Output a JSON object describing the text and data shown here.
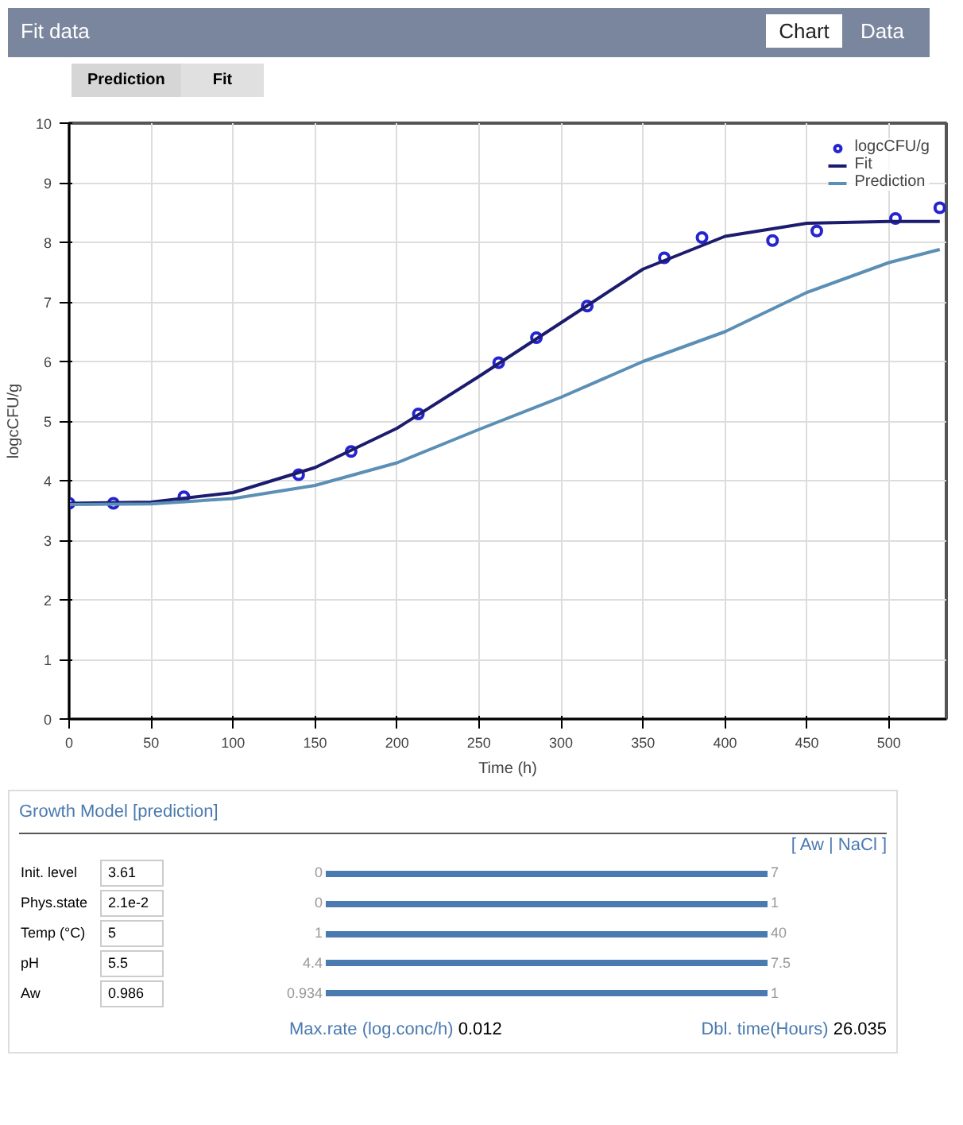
{
  "chart_data": {
    "type": "line",
    "title": "Fit data",
    "xlabel": "Time (h)",
    "ylabel": "logcCFU/g",
    "xlim": [
      0,
      535
    ],
    "xticks": [
      0,
      50,
      100,
      150,
      200,
      250,
      300,
      350,
      400,
      450,
      500
    ],
    "ylim": [
      0,
      10
    ],
    "yticks": [
      0,
      1,
      2,
      3,
      4,
      5,
      6,
      7,
      8,
      9,
      10
    ],
    "grid": true,
    "legend": "top right",
    "series": [
      {
        "name": "logcCFU/g",
        "type": "scatter",
        "marker": "circle",
        "color": "#2424d0",
        "x": [
          0,
          27,
          70,
          140,
          172,
          213,
          262,
          285,
          316,
          363,
          386,
          429,
          456,
          504,
          531
        ],
        "values": [
          3.62,
          3.62,
          3.73,
          4.1,
          4.49,
          5.12,
          5.98,
          6.4,
          6.93,
          7.74,
          8.08,
          8.03,
          8.19,
          8.4,
          8.58
        ]
      },
      {
        "name": "Fit",
        "color": "#1c1c6e",
        "x": [
          0,
          50,
          100,
          150,
          200,
          250,
          300,
          350,
          400,
          450,
          500,
          531
        ],
        "values": [
          3.62,
          3.64,
          3.8,
          4.22,
          4.88,
          5.75,
          6.65,
          7.55,
          8.1,
          8.32,
          8.35,
          8.35
        ]
      },
      {
        "name": "Prediction",
        "type": "line",
        "color": "#5b8fb5",
        "x": [
          0,
          50,
          100,
          150,
          200,
          250,
          300,
          350,
          400,
          450,
          500,
          531
        ],
        "values": [
          3.6,
          3.61,
          3.7,
          3.92,
          4.3,
          4.86,
          5.4,
          6.0,
          6.5,
          7.16,
          7.66,
          7.88
        ]
      }
    ],
    "annotations": [
      "Chart",
      "Data",
      "Prediction",
      "Fit",
      "Growth Model [prediction]",
      "[ Aw | NaCl ]",
      "Init. level",
      "3.61",
      "0",
      "7",
      "Phys.state",
      "2.1e-2",
      "0",
      "1",
      "Temp (°C)",
      "5",
      "1",
      "40",
      "pH",
      "5.5",
      "4.4",
      "7.5",
      "Aw",
      "0.986",
      "0.934",
      "1",
      "Max.rate (log.conc/h)",
      "0.012",
      "Dbl. time(Hours)",
      "26.035"
    ]
  }
}
